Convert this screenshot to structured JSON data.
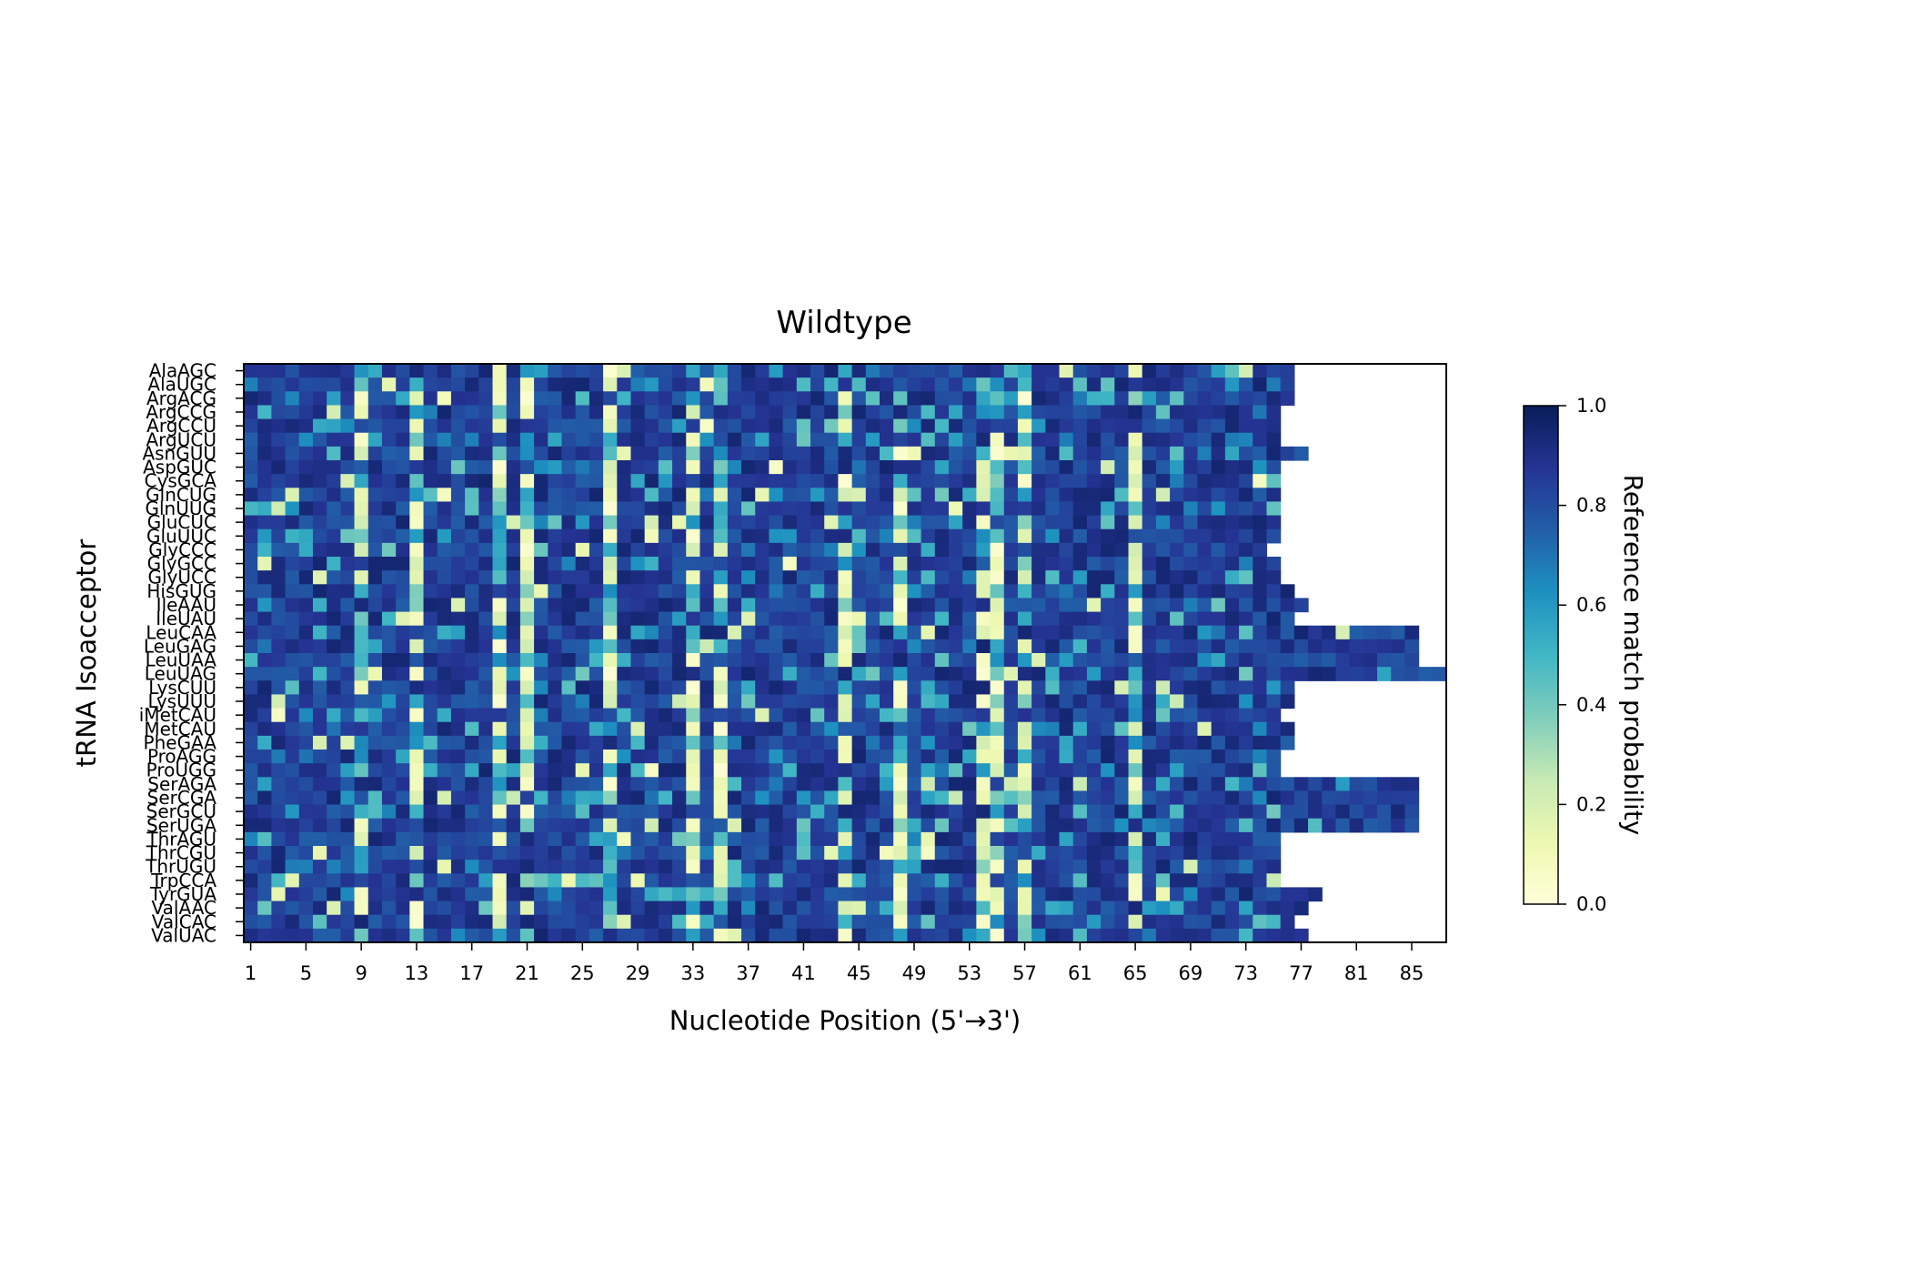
{
  "chart_data": {
    "type": "heatmap",
    "title": "Wildtype",
    "xlabel": "Nucleotide Position (5'→3')",
    "ylabel": "tRNA Isoacceptor",
    "colorbar_label": "Reference match probability",
    "colormap": "YlGnBu",
    "colorbar_range": [
      0.0,
      1.0
    ],
    "colorbar_ticks": [
      "0.0",
      "0.2",
      "0.4",
      "0.6",
      "0.8",
      "1.0"
    ],
    "x_positions_range": [
      1,
      87
    ],
    "x_tick_labels": [
      "1",
      "5",
      "9",
      "13",
      "17",
      "21",
      "25",
      "29",
      "33",
      "37",
      "41",
      "45",
      "49",
      "53",
      "57",
      "61",
      "65",
      "69",
      "73",
      "77",
      "81",
      "85"
    ],
    "rows": [
      {
        "name": "AlaAGC",
        "length": 76
      },
      {
        "name": "AlaUGC",
        "length": 76
      },
      {
        "name": "ArgACG",
        "length": 76
      },
      {
        "name": "ArgCCG",
        "length": 75
      },
      {
        "name": "ArgCCU",
        "length": 75
      },
      {
        "name": "ArgUCU",
        "length": 75
      },
      {
        "name": "AsnGUU",
        "length": 77
      },
      {
        "name": "AspGUC",
        "length": 75
      },
      {
        "name": "CysGCA",
        "length": 75
      },
      {
        "name": "GlnCUG",
        "length": 75
      },
      {
        "name": "GlnUUG",
        "length": 75
      },
      {
        "name": "GluCUC",
        "length": 75
      },
      {
        "name": "GluUUC",
        "length": 75
      },
      {
        "name": "GlyCCC",
        "length": 74
      },
      {
        "name": "GlyGCC",
        "length": 75
      },
      {
        "name": "GlyUCC",
        "length": 75
      },
      {
        "name": "HisGUG",
        "length": 76
      },
      {
        "name": "IleAAU",
        "length": 77
      },
      {
        "name": "IleUAU",
        "length": 76
      },
      {
        "name": "LeuCAA",
        "length": 85
      },
      {
        "name": "LeuGAG",
        "length": 85
      },
      {
        "name": "LeuUAA",
        "length": 85
      },
      {
        "name": "LeuUAG",
        "length": 87
      },
      {
        "name": "LysCUU",
        "length": 76
      },
      {
        "name": "LysUUU",
        "length": 76
      },
      {
        "name": "iMetCAU",
        "length": 75
      },
      {
        "name": "MetCAU",
        "length": 76
      },
      {
        "name": "PheGAA",
        "length": 76
      },
      {
        "name": "ProAGG",
        "length": 75
      },
      {
        "name": "ProUGG",
        "length": 75
      },
      {
        "name": "SerAGA",
        "length": 85
      },
      {
        "name": "SerCGA",
        "length": 85
      },
      {
        "name": "SerGCU",
        "length": 85
      },
      {
        "name": "SerUGA",
        "length": 85
      },
      {
        "name": "ThrAGU",
        "length": 75
      },
      {
        "name": "ThrCGU",
        "length": 75
      },
      {
        "name": "ThrUGU",
        "length": 75
      },
      {
        "name": "TrpCCA",
        "length": 75
      },
      {
        "name": "TyrGUA",
        "length": 78
      },
      {
        "name": "ValAAC",
        "length": 77
      },
      {
        "name": "ValCAC",
        "length": 76
      },
      {
        "name": "ValUAC",
        "length": 77
      }
    ],
    "low_match_columns": [
      9,
      13,
      19,
      21,
      27,
      33,
      35,
      44,
      48,
      54,
      55,
      57,
      65
    ],
    "background_value_range": [
      0.75,
      0.95
    ]
  }
}
